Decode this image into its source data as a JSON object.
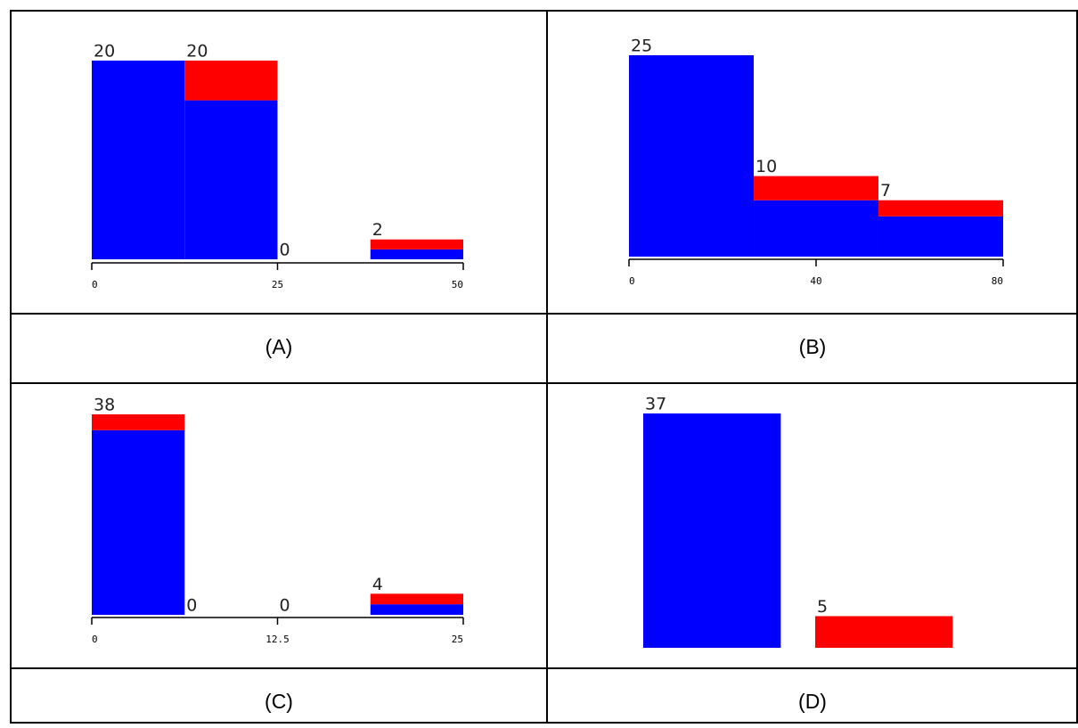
{
  "chart_data": [
    {
      "type": "histogram",
      "caption": "(A)",
      "bins": [
        0,
        12.5,
        25,
        37.5,
        50
      ],
      "xlim": [
        0,
        50
      ],
      "xticks": [
        0,
        25,
        50
      ],
      "series": [
        {
          "name": "blue",
          "color": "#0000ff",
          "values": [
            20,
            16,
            0,
            1
          ]
        },
        {
          "name": "red",
          "color": "#ff0000",
          "values": [
            0,
            4,
            0,
            1
          ]
        }
      ],
      "totals": [
        20,
        20,
        0,
        2
      ]
    },
    {
      "type": "histogram",
      "caption": "(B)",
      "bins": [
        0,
        26.67,
        53.33,
        80
      ],
      "xlim": [
        0,
        80
      ],
      "xticks": [
        0,
        40,
        80
      ],
      "series": [
        {
          "name": "blue",
          "color": "#0000ff",
          "values": [
            25,
            7,
            5
          ]
        },
        {
          "name": "red",
          "color": "#ff0000",
          "values": [
            0,
            3,
            2
          ]
        }
      ],
      "totals": [
        25,
        10,
        7
      ]
    },
    {
      "type": "histogram",
      "caption": "(C)",
      "bins": [
        0,
        6.25,
        12.5,
        18.75,
        25
      ],
      "xlim": [
        0,
        25
      ],
      "xticks": [
        0,
        12.5,
        25
      ],
      "series": [
        {
          "name": "blue",
          "color": "#0000ff",
          "values": [
            35,
            0,
            0,
            2
          ]
        },
        {
          "name": "red",
          "color": "#ff0000",
          "values": [
            3,
            0,
            0,
            2
          ]
        }
      ],
      "totals": [
        38,
        0,
        0,
        4
      ]
    },
    {
      "type": "bar",
      "caption": "(D)",
      "categories": [
        null,
        null
      ],
      "values": [
        37,
        5
      ],
      "colors": [
        "#0000ff",
        "#ff0000"
      ]
    }
  ]
}
